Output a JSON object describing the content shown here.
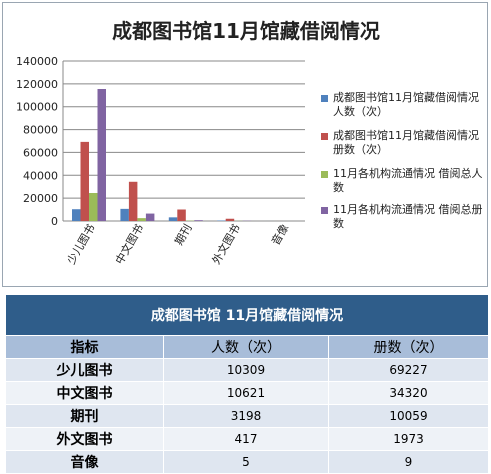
{
  "chart_data": {
    "type": "bar",
    "title": "成都图书馆11月馆藏借阅情况",
    "categories": [
      "少儿图书",
      "中文图书",
      "期刊",
      "外文图书",
      "音像"
    ],
    "ylim": [
      0,
      140000
    ],
    "yticks": [
      "0",
      "20000",
      "40000",
      "60000",
      "80000",
      "100000",
      "120000",
      "140000"
    ],
    "grid": true,
    "legend_position": "right",
    "series": [
      {
        "name": "成都图书馆11月馆藏借阅情况 人数（次）",
        "color": "#4f81bd",
        "values": [
          10309,
          10621,
          3198,
          417,
          5
        ]
      },
      {
        "name": "成都图书馆11月馆藏借阅情况 册数（次）",
        "color": "#c0504d",
        "values": [
          69227,
          34320,
          10059,
          1973,
          9
        ]
      },
      {
        "name": "11月各机构流通情况 借阅总人数",
        "color": "#9bbb59",
        "values": [
          24500,
          2500,
          300,
          100,
          0
        ]
      },
      {
        "name": "11月各机构流通情况 借阅总册数",
        "color": "#8064a2",
        "values": [
          115500,
          6500,
          700,
          200,
          0
        ]
      }
    ]
  },
  "table": {
    "title": "成都图书馆 11月馆藏借阅情况",
    "headers": [
      "指标",
      "人数（次）",
      "册数（次）"
    ],
    "rows": [
      {
        "name": "少儿图书",
        "people": "10309",
        "volumes": "69227"
      },
      {
        "name": "中文图书",
        "people": "10621",
        "volumes": "34320"
      },
      {
        "name": "期刊",
        "people": "3198",
        "volumes": "10059"
      },
      {
        "name": "外文图书",
        "people": "417",
        "volumes": "1973"
      },
      {
        "name": "音像",
        "people": "5",
        "volumes": "9"
      }
    ]
  }
}
